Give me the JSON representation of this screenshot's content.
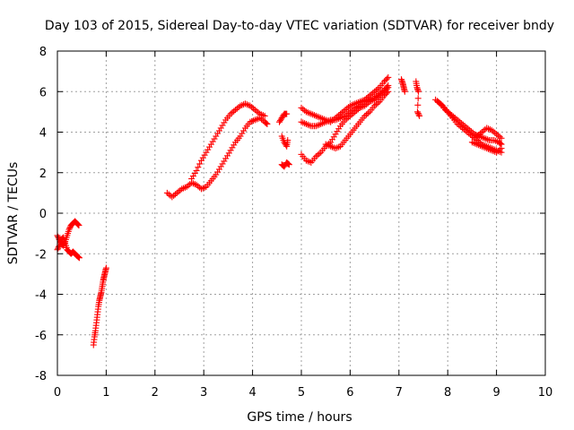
{
  "chart_data": {
    "type": "scatter",
    "title": "Day 103 of 2015, Sidereal Day-to-day VTEC variation (SDTVAR) for receiver bndy",
    "xlabel": "GPS time / hours",
    "ylabel": "SDTVAR / TECUs",
    "xlim": [
      0,
      10
    ],
    "ylim": [
      -8,
      8
    ],
    "x_ticks": [
      0,
      1,
      2,
      3,
      4,
      5,
      6,
      7,
      8,
      9,
      10
    ],
    "y_ticks": [
      -8,
      -6,
      -4,
      -2,
      0,
      2,
      4,
      6,
      8
    ],
    "grid": true,
    "marker": "plus",
    "color": "#ff0000",
    "series": [
      {
        "segments": [
          [
            [
              0.0,
              -1.1
            ],
            [
              0.04,
              -1.3
            ],
            [
              0.08,
              -1.5
            ],
            [
              0.12,
              -1.6
            ],
            [
              0.16,
              -1.4
            ],
            [
              0.2,
              -1.1
            ],
            [
              0.24,
              -0.8
            ],
            [
              0.28,
              -0.6
            ],
            [
              0.32,
              -0.5
            ],
            [
              0.36,
              -0.4
            ],
            [
              0.4,
              -0.5
            ],
            [
              0.44,
              -0.6
            ]
          ],
          [
            [
              0.0,
              -1.8
            ],
            [
              0.04,
              -1.6
            ],
            [
              0.08,
              -1.3
            ],
            [
              0.12,
              -1.2
            ],
            [
              0.16,
              -1.5
            ],
            [
              0.2,
              -1.8
            ],
            [
              0.24,
              -1.9
            ],
            [
              0.28,
              -2.0
            ],
            [
              0.32,
              -1.9
            ],
            [
              0.36,
              -2.0
            ],
            [
              0.4,
              -2.1
            ],
            [
              0.45,
              -2.2
            ]
          ],
          [
            [
              0.74,
              -6.5
            ],
            [
              0.76,
              -6.1
            ],
            [
              0.78,
              -5.8
            ],
            [
              0.8,
              -5.4
            ],
            [
              0.82,
              -5.0
            ],
            [
              0.84,
              -4.6
            ],
            [
              0.86,
              -4.3
            ],
            [
              0.88,
              -4.1
            ],
            [
              0.9,
              -3.9
            ],
            [
              0.92,
              -3.6
            ],
            [
              0.94,
              -3.3
            ],
            [
              0.96,
              -3.1
            ],
            [
              0.98,
              -2.9
            ],
            [
              1.0,
              -2.7
            ]
          ],
          [
            [
              2.25,
              1.0
            ],
            [
              2.35,
              0.8
            ],
            [
              2.45,
              1.0
            ],
            [
              2.55,
              1.2
            ],
            [
              2.65,
              1.3
            ],
            [
              2.75,
              1.5
            ],
            [
              2.85,
              1.4
            ],
            [
              2.95,
              1.2
            ],
            [
              3.05,
              1.3
            ],
            [
              3.15,
              1.6
            ],
            [
              3.25,
              1.9
            ],
            [
              3.35,
              2.3
            ],
            [
              3.45,
              2.7
            ],
            [
              3.55,
              3.1
            ],
            [
              3.65,
              3.5
            ],
            [
              3.75,
              3.8
            ],
            [
              3.85,
              4.2
            ],
            [
              3.95,
              4.5
            ],
            [
              4.05,
              4.6
            ],
            [
              4.15,
              4.7
            ],
            [
              4.25,
              4.5
            ],
            [
              4.3,
              4.4
            ]
          ],
          [
            [
              2.75,
              1.7
            ],
            [
              2.85,
              2.1
            ],
            [
              2.95,
              2.6
            ],
            [
              3.05,
              3.0
            ],
            [
              3.15,
              3.4
            ],
            [
              3.25,
              3.8
            ],
            [
              3.35,
              4.2
            ],
            [
              3.45,
              4.6
            ],
            [
              3.55,
              4.9
            ],
            [
              3.65,
              5.1
            ],
            [
              3.75,
              5.3
            ],
            [
              3.85,
              5.4
            ],
            [
              3.95,
              5.3
            ],
            [
              4.05,
              5.1
            ],
            [
              4.15,
              4.9
            ],
            [
              4.25,
              4.8
            ]
          ],
          [
            [
              4.55,
              4.5
            ],
            [
              4.6,
              4.7
            ],
            [
              4.65,
              4.9
            ],
            [
              4.7,
              4.9
            ]
          ],
          [
            [
              4.6,
              3.8
            ],
            [
              4.65,
              3.5
            ],
            [
              4.7,
              3.3
            ],
            [
              4.72,
              3.6
            ]
          ],
          [
            [
              4.6,
              2.4
            ],
            [
              4.65,
              2.3
            ],
            [
              4.7,
              2.5
            ],
            [
              4.75,
              2.4
            ]
          ],
          [
            [
              5.0,
              5.2
            ],
            [
              5.1,
              5.0
            ],
            [
              5.2,
              4.9
            ],
            [
              5.3,
              4.8
            ],
            [
              5.4,
              4.7
            ],
            [
              5.5,
              4.6
            ],
            [
              5.6,
              4.5
            ],
            [
              5.7,
              4.7
            ],
            [
              5.8,
              4.9
            ],
            [
              5.9,
              5.1
            ],
            [
              6.0,
              5.3
            ],
            [
              6.1,
              5.4
            ],
            [
              6.2,
              5.5
            ],
            [
              6.3,
              5.6
            ],
            [
              6.4,
              5.8
            ],
            [
              6.5,
              6.0
            ],
            [
              6.6,
              6.2
            ],
            [
              6.7,
              6.5
            ],
            [
              6.78,
              6.7
            ]
          ],
          [
            [
              5.0,
              4.5
            ],
            [
              5.1,
              4.4
            ],
            [
              5.2,
              4.3
            ],
            [
              5.3,
              4.3
            ],
            [
              5.4,
              4.4
            ],
            [
              5.5,
              4.5
            ],
            [
              5.6,
              4.6
            ],
            [
              5.7,
              4.6
            ],
            [
              5.8,
              4.7
            ],
            [
              5.9,
              4.8
            ],
            [
              6.0,
              5.0
            ],
            [
              6.1,
              5.2
            ],
            [
              6.2,
              5.3
            ],
            [
              6.3,
              5.5
            ],
            [
              6.4,
              5.6
            ],
            [
              6.5,
              5.7
            ],
            [
              6.6,
              5.9
            ],
            [
              6.7,
              6.1
            ],
            [
              6.78,
              6.3
            ]
          ],
          [
            [
              5.0,
              2.9
            ],
            [
              5.1,
              2.6
            ],
            [
              5.2,
              2.5
            ],
            [
              5.3,
              2.8
            ],
            [
              5.4,
              3.0
            ],
            [
              5.5,
              3.3
            ],
            [
              5.6,
              3.5
            ],
            [
              5.7,
              3.9
            ],
            [
              5.8,
              4.3
            ],
            [
              5.9,
              4.6
            ],
            [
              6.0,
              4.8
            ],
            [
              6.1,
              5.0
            ],
            [
              6.2,
              5.2
            ],
            [
              6.3,
              5.3
            ],
            [
              6.4,
              5.5
            ],
            [
              6.5,
              5.6
            ],
            [
              6.6,
              5.8
            ],
            [
              6.7,
              6.0
            ],
            [
              6.78,
              6.2
            ]
          ],
          [
            [
              5.5,
              3.4
            ],
            [
              5.6,
              3.3
            ],
            [
              5.7,
              3.2
            ],
            [
              5.8,
              3.3
            ],
            [
              5.9,
              3.6
            ],
            [
              6.0,
              3.9
            ],
            [
              6.1,
              4.2
            ],
            [
              6.2,
              4.5
            ],
            [
              6.3,
              4.8
            ],
            [
              6.4,
              5.0
            ],
            [
              6.5,
              5.3
            ],
            [
              6.6,
              5.5
            ],
            [
              6.7,
              5.8
            ],
            [
              6.78,
              6.0
            ]
          ],
          [
            [
              7.05,
              6.6
            ],
            [
              7.08,
              6.4
            ],
            [
              7.1,
              6.2
            ],
            [
              7.12,
              6.0
            ]
          ],
          [
            [
              7.35,
              6.5
            ],
            [
              7.37,
              6.2
            ],
            [
              7.4,
              6.0
            ],
            [
              7.38,
              5.0
            ],
            [
              7.42,
              4.8
            ]
          ],
          [
            [
              7.75,
              5.6
            ],
            [
              7.85,
              5.4
            ],
            [
              7.95,
              5.1
            ],
            [
              8.05,
              4.9
            ],
            [
              8.15,
              4.7
            ],
            [
              8.25,
              4.5
            ],
            [
              8.35,
              4.3
            ],
            [
              8.45,
              4.1
            ],
            [
              8.55,
              3.9
            ],
            [
              8.65,
              3.8
            ],
            [
              8.75,
              3.7
            ],
            [
              8.85,
              3.6
            ],
            [
              8.95,
              3.6
            ],
            [
              9.05,
              3.5
            ],
            [
              9.1,
              3.4
            ]
          ],
          [
            [
              7.8,
              5.5
            ],
            [
              7.9,
              5.3
            ],
            [
              8.0,
              5.0
            ],
            [
              8.1,
              4.7
            ],
            [
              8.2,
              4.4
            ],
            [
              8.3,
              4.2
            ],
            [
              8.4,
              4.0
            ],
            [
              8.5,
              3.8
            ],
            [
              8.6,
              3.6
            ],
            [
              8.7,
              3.4
            ],
            [
              8.8,
              3.3
            ],
            [
              8.9,
              3.2
            ],
            [
              9.0,
              3.1
            ],
            [
              9.1,
              3.0
            ]
          ],
          [
            [
              8.6,
              3.8
            ],
            [
              8.7,
              4.0
            ],
            [
              8.8,
              4.2
            ],
            [
              8.9,
              4.1
            ],
            [
              9.0,
              3.9
            ],
            [
              9.1,
              3.7
            ]
          ],
          [
            [
              8.5,
              3.5
            ],
            [
              8.6,
              3.4
            ],
            [
              8.7,
              3.3
            ],
            [
              8.8,
              3.2
            ],
            [
              8.9,
              3.1
            ],
            [
              9.0,
              3.0
            ],
            [
              9.1,
              3.2
            ]
          ]
        ]
      }
    ]
  }
}
